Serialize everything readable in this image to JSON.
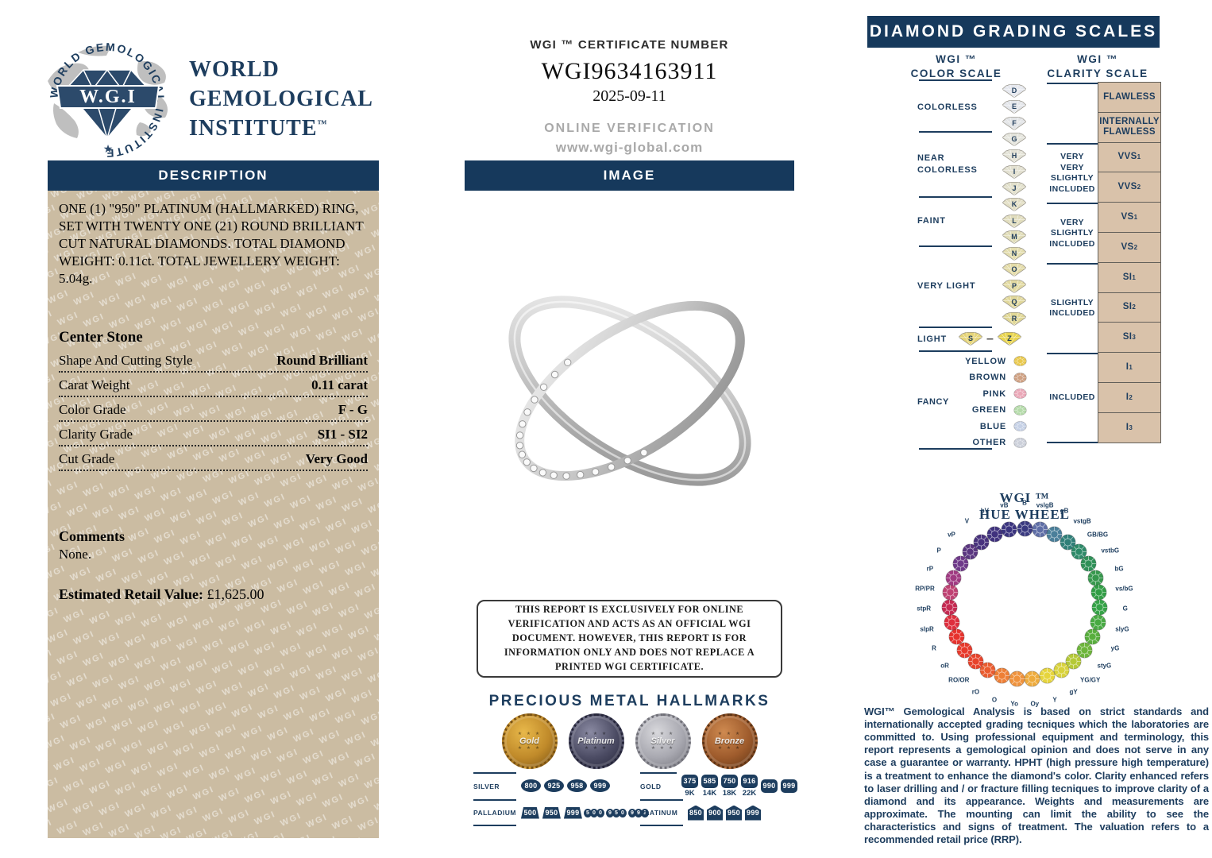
{
  "brand": {
    "logo_initials": "W.G.I",
    "logo_ring_text": "WORLD GEMOLOGICAL INSTITUTE",
    "star": "★",
    "name_line1": "WORLD",
    "name_line2": "GEMOLOGICAL",
    "name_line3": "INSTITUTE",
    "tm": "™"
  },
  "watermark": "WGI",
  "certificate": {
    "header": "WGI ™ CERTIFICATE NUMBER",
    "number": "WGI9634163911",
    "date": "2025-09-11",
    "verification_label": "ONLINE VERIFICATION",
    "website": "www.wgi-global.com"
  },
  "description": {
    "header": "DESCRIPTION",
    "body": "ONE (1) \"950\" PLATINUM (HALLMARKED) RING, SET WITH TWENTY ONE (21) ROUND BRILLIANT CUT NATURAL DIAMONDS. TOTAL DIAMOND WEIGHT: 0.11ct. TOTAL JEWELLERY WEIGHT: 5.04g.",
    "center_stone_title": "Center Stone",
    "rows": [
      {
        "label": "Shape And Cutting Style",
        "value": "Round Brilliant"
      },
      {
        "label": "Carat Weight",
        "value": "0.11 carat"
      },
      {
        "label": "Color Grade",
        "value": "F - G"
      },
      {
        "label": "Clarity Grade",
        "value": "SI1 - SI2"
      },
      {
        "label": "Cut Grade",
        "value": "Very Good"
      }
    ],
    "comments_title": "Comments",
    "comments": "None.",
    "retail_label": "Estimated Retail Value:",
    "retail_value": "£1,625.00"
  },
  "image_section": {
    "header": "IMAGE"
  },
  "disclaimer": "THIS REPORT IS EXCLUSIVELY FOR ONLINE VERIFICATION AND ACTS AS AN OFFICIAL WGI DOCUMENT. HOWEVER, THIS REPORT IS FOR INFORMATION ONLY AND DOES NOT REPLACE A PRINTED WGI CERTIFICATE.",
  "hallmarks": {
    "title": "PRECIOUS METAL HALLMARKS",
    "medals": [
      {
        "label": "Gold",
        "light": "#e8b84a",
        "mid": "#c08a2a",
        "dark": "#7a5212"
      },
      {
        "label": "Platinum",
        "light": "#8a8aa2",
        "mid": "#4c4c64",
        "dark": "#26263a"
      },
      {
        "label": "Silver",
        "light": "#d8d8dc",
        "mid": "#a8a8b0",
        "dark": "#707078"
      },
      {
        "label": "Bronze",
        "light": "#cf8a50",
        "mid": "#9e5b2c",
        "dark": "#5e3314"
      }
    ],
    "groups": [
      {
        "metal": "SILVER",
        "stamps": [
          {
            "v": "800",
            "shape": "oval"
          },
          {
            "v": "925",
            "shape": "oval"
          },
          {
            "v": "958",
            "shape": "oval"
          },
          {
            "v": "999",
            "shape": "oval"
          }
        ]
      },
      {
        "metal": "PALLADIUM",
        "stamps": [
          {
            "v": "500",
            "shape": "trap"
          },
          {
            "v": "950",
            "shape": "trap"
          },
          {
            "v": "999",
            "shape": "trap"
          },
          {
            "v": "500",
            "shape": "circles"
          },
          {
            "v": "950",
            "shape": "circles"
          },
          {
            "v": "999",
            "shape": "circles"
          }
        ]
      },
      {
        "metal": "GOLD",
        "stamps": [
          {
            "v": "375",
            "k": "9K",
            "shape": "rrect"
          },
          {
            "v": "585",
            "k": "14K",
            "shape": "rrect"
          },
          {
            "v": "750",
            "k": "18K",
            "shape": "rrect"
          },
          {
            "v": "916",
            "k": "22K",
            "shape": "rrect"
          },
          {
            "v": "990",
            "shape": "rrect"
          },
          {
            "v": "999",
            "shape": "rrect"
          }
        ]
      },
      {
        "metal": "PLATINUM",
        "stamps": [
          {
            "v": "850",
            "shape": "house"
          },
          {
            "v": "900",
            "shape": "house"
          },
          {
            "v": "950",
            "shape": "house"
          },
          {
            "v": "999",
            "shape": "house"
          }
        ]
      }
    ]
  },
  "grading": {
    "header": "DIAMOND GRADING SCALES",
    "color_title_1": "WGI ™",
    "color_title_2": "COLOR SCALE",
    "clarity_title_1": "WGI ™",
    "clarity_title_2": "CLARITY SCALE",
    "color_groups": [
      {
        "label": "COLORLESS",
        "grades": [
          {
            "letter": "D",
            "color": "#e6e8ee"
          },
          {
            "letter": "E",
            "color": "#e4e6ea"
          },
          {
            "letter": "F",
            "color": "#e2e4e6"
          }
        ]
      },
      {
        "label": "NEAR COLORLESS",
        "grades": [
          {
            "letter": "G",
            "color": "#e4e4dc"
          },
          {
            "letter": "H",
            "color": "#e3e2d6"
          },
          {
            "letter": "I",
            "color": "#e2e0d0"
          },
          {
            "letter": "J",
            "color": "#e1dfca"
          }
        ]
      },
      {
        "label": "FAINT",
        "grades": [
          {
            "letter": "K",
            "color": "#e2dec4"
          },
          {
            "letter": "L",
            "color": "#e1ddbe"
          },
          {
            "letter": "M",
            "color": "#e0dcb8"
          }
        ]
      },
      {
        "label": "VERY LIGHT",
        "grades": [
          {
            "letter": "N",
            "color": "#e3ddae"
          },
          {
            "letter": "O",
            "color": "#e3dba8"
          },
          {
            "letter": "P",
            "color": "#e2daa2"
          },
          {
            "letter": "Q",
            "color": "#e1d89c"
          },
          {
            "letter": "R",
            "color": "#e0d796"
          }
        ]
      }
    ],
    "light_group": {
      "label": "LIGHT",
      "from": {
        "letter": "S",
        "color": "#e5d478"
      },
      "dash": "–",
      "to": {
        "letter": "Z",
        "color": "#e8d44e"
      }
    },
    "fancy": {
      "label": "FANCY",
      "colors": [
        {
          "name": "YELLOW",
          "color": "#e9c94e"
        },
        {
          "name": "BROWN",
          "color": "#cfa183"
        },
        {
          "name": "PINK",
          "color": "#eaa8b8"
        },
        {
          "name": "GREEN",
          "color": "#b5dbaa"
        },
        {
          "name": "BLUE",
          "color": "#c6d1e6"
        },
        {
          "name": "OTHER",
          "color": "#ccd0da"
        }
      ]
    },
    "clarity_groups": [
      {
        "phrase": "",
        "boxes": [
          {
            "name": "FLAWLESS"
          },
          {
            "name": "INTERNALLY FLAWLESS"
          }
        ]
      },
      {
        "phrase": "VERY VERY SLIGHTLY INCLUDED",
        "boxes": [
          {
            "name": "VVS",
            "sub": "1"
          },
          {
            "name": "VVS",
            "sub": "2"
          }
        ]
      },
      {
        "phrase": "VERY SLIGHTLY INCLUDED",
        "boxes": [
          {
            "name": "VS",
            "sub": "1"
          },
          {
            "name": "VS",
            "sub": "2"
          }
        ]
      },
      {
        "phrase": "SLIGHTLY INCLUDED",
        "boxes": [
          {
            "name": "SI",
            "sub": "1"
          },
          {
            "name": "SI",
            "sub": "2"
          },
          {
            "name": "SI",
            "sub": "3"
          }
        ]
      },
      {
        "phrase": "INCLUDED",
        "boxes": [
          {
            "name": "I",
            "sub": "1"
          },
          {
            "name": "I",
            "sub": "2"
          },
          {
            "name": "I",
            "sub": "3"
          }
        ]
      }
    ]
  },
  "hue_wheel": {
    "title1": "WGI ™",
    "title2": "HUE WHEEL",
    "items": [
      {
        "label": "B",
        "hex": "#3a3a80"
      },
      {
        "label": "vslgB",
        "hex": "#5f6ea6"
      },
      {
        "label": "gB",
        "hex": "#4a7f9a"
      },
      {
        "label": "vstgB",
        "hex": "#2f7f78"
      },
      {
        "label": "GB/BG",
        "hex": "#2e8a69"
      },
      {
        "label": "vstbG",
        "hex": "#2f9058"
      },
      {
        "label": "bG",
        "hex": "#37984d"
      },
      {
        "label": "vs/bG",
        "hex": "#319d45"
      },
      {
        "label": "G",
        "hex": "#35a347"
      },
      {
        "label": "slyG",
        "hex": "#47aa42"
      },
      {
        "label": "yG",
        "hex": "#58ae3d"
      },
      {
        "label": "styG",
        "hex": "#6db53a"
      },
      {
        "label": "YG/GY",
        "hex": "#b5c937"
      },
      {
        "label": "gY",
        "hex": "#d8d23c"
      },
      {
        "label": "Y",
        "hex": "#e6d53d"
      },
      {
        "label": "Oy",
        "hex": "#eeab3c"
      },
      {
        "label": "Yo",
        "hex": "#ef923c"
      },
      {
        "label": "O",
        "hex": "#ee7f36"
      },
      {
        "label": "rO",
        "hex": "#ea5c2f"
      },
      {
        "label": "RO/OR",
        "hex": "#e7432b"
      },
      {
        "label": "oR",
        "hex": "#e73a2c"
      },
      {
        "label": "R",
        "hex": "#e6322d"
      },
      {
        "label": "slpR",
        "hex": "#de2e3d"
      },
      {
        "label": "stpR",
        "hex": "#c62a52"
      },
      {
        "label": "RP/PR",
        "hex": "#bf4273"
      },
      {
        "label": "rP",
        "hex": "#a03a82"
      },
      {
        "label": "P",
        "hex": "#6f3a8a"
      },
      {
        "label": "vP",
        "hex": "#5a3680"
      },
      {
        "label": "V",
        "hex": "#48327d"
      },
      {
        "label": "bV",
        "hex": "#40327e"
      },
      {
        "label": "vB",
        "hex": "#3b347f"
      }
    ]
  },
  "footer": "WGI™ Gemological Analysis is based on strict standards and internationally accepted grading tecniques which the laboratories are committed to. Using professional equipment and terminology, this report represents a gemological opinion and does not serve in any case a guarantee or warranty. HPHT (high pressure high temperature) is a treatment to enhance the diamond's color. Clarity enhanced refers to laser drilling and / or fracture filling tecniques to improve clarity of a diamond and its appearance. Weights and measurements are approximate. The mounting can limit the ability to see the characteristics and signs of treatment. The valuation refers to a recommended retail price (RRP).",
  "colors": {
    "navy": "#1d3d5e",
    "tan": "#cbbca2",
    "clarity_box": "#d9c2aa"
  }
}
